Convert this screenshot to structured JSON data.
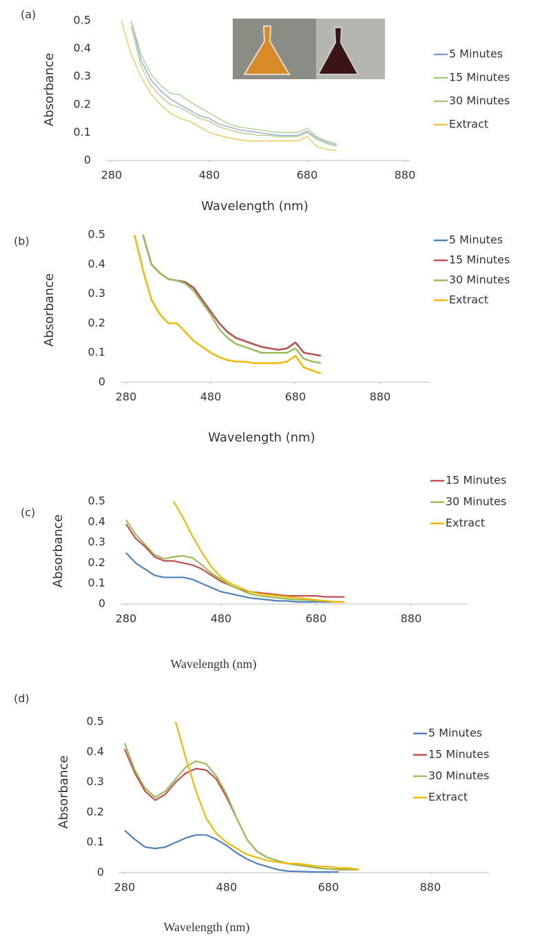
{
  "chart_data": [
    {
      "type": "line",
      "panel_label": "(a)",
      "xlabel": "Wavelength (nm)",
      "ylabel": "Absorbance",
      "x": [
        300,
        320,
        340,
        360,
        380,
        400,
        420,
        440,
        460,
        480,
        500,
        520,
        540,
        560,
        580,
        600,
        620,
        640,
        660,
        680,
        700,
        720,
        740
      ],
      "xlim": [
        280,
        880
      ],
      "xticks": [
        280,
        480,
        680,
        880
      ],
      "ylim": [
        0,
        0.5
      ],
      "yticks": [
        0,
        0.1,
        0.2,
        0.3,
        0.4,
        0.5
      ],
      "grid": false,
      "legend": "right",
      "series": [
        {
          "name": "5 Minutes",
          "color": "#7f9fcf",
          "values": [
            null,
            0.5,
            0.36,
            0.29,
            0.25,
            0.22,
            0.2,
            0.18,
            0.16,
            0.15,
            0.13,
            0.12,
            0.11,
            0.105,
            0.1,
            0.095,
            0.09,
            0.09,
            0.09,
            0.105,
            0.08,
            0.065,
            0.055
          ]
        },
        {
          "name": "15 Minutes",
          "color": "#9ccf7f",
          "values": [
            null,
            0.5,
            0.38,
            0.31,
            0.27,
            0.24,
            0.235,
            0.21,
            0.19,
            0.17,
            0.15,
            0.13,
            0.12,
            0.115,
            0.11,
            0.105,
            0.1,
            0.1,
            0.1,
            0.115,
            0.085,
            0.07,
            0.06
          ]
        },
        {
          "name": "30 Minutes",
          "color": "#a8c77a",
          "values": [
            null,
            0.48,
            0.34,
            0.27,
            0.23,
            0.2,
            0.19,
            0.17,
            0.15,
            0.14,
            0.12,
            0.11,
            0.1,
            0.095,
            0.09,
            0.09,
            0.085,
            0.085,
            0.085,
            0.1,
            0.075,
            0.06,
            0.05
          ]
        },
        {
          "name": "Extract",
          "color": "#f0c040",
          "values": [
            0.5,
            0.38,
            0.3,
            0.24,
            0.2,
            0.17,
            0.15,
            0.14,
            0.12,
            0.1,
            0.09,
            0.08,
            0.075,
            0.07,
            0.07,
            0.07,
            0.07,
            0.07,
            0.07,
            0.085,
            0.05,
            0.04,
            0.035
          ]
        }
      ]
    },
    {
      "type": "line",
      "panel_label": "(b)",
      "xlabel": "Wavelength (nm)",
      "ylabel": "Absorbance",
      "x": [
        300,
        320,
        340,
        360,
        380,
        400,
        420,
        440,
        460,
        480,
        500,
        520,
        540,
        560,
        580,
        600,
        620,
        640,
        660,
        680,
        700,
        720,
        740
      ],
      "xlim": [
        280,
        880
      ],
      "xticks": [
        280,
        480,
        680,
        880
      ],
      "ylim": [
        0,
        0.5
      ],
      "yticks": [
        0,
        0.1,
        0.2,
        0.3,
        0.4,
        0.5
      ],
      "grid": false,
      "legend": "right",
      "series": [
        {
          "name": "5 Minutes",
          "color": "#4f81bd",
          "values": [
            null,
            0.5,
            0.4,
            0.37,
            0.35,
            0.345,
            0.34,
            0.32,
            0.28,
            0.24,
            0.2,
            0.17,
            0.15,
            0.14,
            0.13,
            0.12,
            0.115,
            0.11,
            0.115,
            0.135,
            0.1,
            0.095,
            0.09
          ]
        },
        {
          "name": "15 Minutes",
          "color": "#c0504d",
          "values": [
            null,
            0.5,
            0.4,
            0.37,
            0.35,
            0.345,
            0.34,
            0.32,
            0.28,
            0.24,
            0.2,
            0.17,
            0.15,
            0.14,
            0.13,
            0.12,
            0.115,
            0.11,
            0.115,
            0.135,
            0.1,
            0.095,
            0.09
          ]
        },
        {
          "name": "30 Minutes",
          "color": "#9bbb59",
          "values": [
            null,
            0.5,
            0.4,
            0.37,
            0.35,
            0.345,
            0.335,
            0.31,
            0.27,
            0.23,
            0.18,
            0.15,
            0.13,
            0.12,
            0.11,
            0.1,
            0.1,
            0.1,
            0.1,
            0.115,
            0.08,
            0.07,
            0.065
          ]
        },
        {
          "name": "Extract",
          "color": "#f4b800",
          "values": [
            0.5,
            0.38,
            0.28,
            0.23,
            0.2,
            0.2,
            0.17,
            0.14,
            0.12,
            0.1,
            0.085,
            0.075,
            0.07,
            0.07,
            0.065,
            0.065,
            0.065,
            0.065,
            0.07,
            0.09,
            0.05,
            0.04,
            0.03
          ]
        }
      ]
    },
    {
      "type": "line",
      "panel_label": "(c)",
      "xlabel": "Wavelength (nm)",
      "ylabel": "Absorbance",
      "x": [
        280,
        300,
        320,
        340,
        360,
        380,
        400,
        420,
        440,
        460,
        480,
        500,
        520,
        540,
        560,
        580,
        600,
        620,
        640,
        660,
        680,
        700,
        720,
        740
      ],
      "xlim": [
        280,
        880
      ],
      "xticks": [
        280,
        480,
        680,
        880
      ],
      "ylim": [
        0,
        0.5
      ],
      "yticks": [
        0,
        0.1,
        0.2,
        0.3,
        0.4,
        0.5
      ],
      "grid": false,
      "legend": "right",
      "series": [
        {
          "color": "#4f81bd",
          "values": [
            0.25,
            0.2,
            0.17,
            0.14,
            0.13,
            0.13,
            0.13,
            0.12,
            0.1,
            0.08,
            0.06,
            0.05,
            0.04,
            0.03,
            0.025,
            0.02,
            0.015,
            0.015,
            0.01,
            0.01,
            0.01,
            0.01,
            0.01,
            0.01
          ]
        },
        {
          "name": "15 Minutes",
          "color": "#c0504d",
          "values": [
            0.39,
            0.32,
            0.28,
            0.23,
            0.21,
            0.21,
            0.2,
            0.19,
            0.17,
            0.14,
            0.11,
            0.09,
            0.07,
            0.06,
            0.055,
            0.05,
            0.045,
            0.04,
            0.04,
            0.04,
            0.04,
            0.035,
            0.035,
            0.035
          ]
        },
        {
          "name": "30 Minutes",
          "color": "#9bbb59",
          "values": [
            0.41,
            0.34,
            0.29,
            0.24,
            0.22,
            0.23,
            0.235,
            0.225,
            0.19,
            0.15,
            0.12,
            0.09,
            0.07,
            0.05,
            0.04,
            0.035,
            0.03,
            0.025,
            0.02,
            0.02,
            0.015,
            0.015,
            0.01,
            0.01
          ]
        },
        {
          "name": "Extract",
          "color": "#f4b800",
          "values": [
            null,
            null,
            null,
            null,
            null,
            0.5,
            0.42,
            0.33,
            0.25,
            0.18,
            0.13,
            0.1,
            0.08,
            0.06,
            0.05,
            0.045,
            0.04,
            0.035,
            0.03,
            0.025,
            0.02,
            0.015,
            0.01,
            0.01
          ]
        }
      ]
    },
    {
      "type": "line",
      "panel_label": "(d)",
      "xlabel": "Wavelength (nm)",
      "ylabel": "Absorbance",
      "x": [
        280,
        300,
        320,
        340,
        360,
        380,
        400,
        420,
        440,
        460,
        480,
        500,
        520,
        540,
        560,
        580,
        600,
        620,
        640,
        660,
        680,
        700,
        720,
        740
      ],
      "xlim": [
        280,
        880
      ],
      "xticks": [
        280,
        480,
        680,
        880
      ],
      "ylim": [
        0,
        0.5
      ],
      "yticks": [
        0,
        0.1,
        0.2,
        0.3,
        0.4,
        0.5
      ],
      "grid": false,
      "legend": "right",
      "series": [
        {
          "name": "5 Minutes",
          "color": "#4f81bd",
          "values": [
            0.14,
            0.11,
            0.085,
            0.08,
            0.085,
            0.1,
            0.115,
            0.125,
            0.125,
            0.11,
            0.09,
            0.065,
            0.045,
            0.03,
            0.02,
            0.01,
            0.005,
            0.004,
            0.003,
            0.002,
            0.002,
            0.002,
            null,
            null
          ]
        },
        {
          "name": "15 Minutes",
          "color": "#c0504d",
          "values": [
            0.41,
            0.33,
            0.27,
            0.24,
            0.26,
            0.3,
            0.33,
            0.345,
            0.34,
            0.31,
            0.25,
            0.18,
            0.11,
            0.07,
            0.05,
            0.04,
            0.03,
            0.025,
            0.02,
            0.015,
            0.012,
            0.01,
            0.01,
            0.01
          ]
        },
        {
          "name": "30 Minutes",
          "color": "#9bbb59",
          "values": [
            0.43,
            0.34,
            0.28,
            0.25,
            0.27,
            0.31,
            0.35,
            0.37,
            0.36,
            0.32,
            0.26,
            0.18,
            0.11,
            0.07,
            0.05,
            0.04,
            0.03,
            0.025,
            0.02,
            0.015,
            0.012,
            0.01,
            0.01,
            0.01
          ]
        },
        {
          "name": "Extract",
          "color": "#f4b800",
          "values": [
            null,
            null,
            null,
            null,
            null,
            0.5,
            0.38,
            0.27,
            0.18,
            0.13,
            0.1,
            0.08,
            0.06,
            0.05,
            0.04,
            0.035,
            0.03,
            0.03,
            0.025,
            0.02,
            0.02,
            0.015,
            0.015,
            0.01
          ]
        }
      ]
    }
  ]
}
